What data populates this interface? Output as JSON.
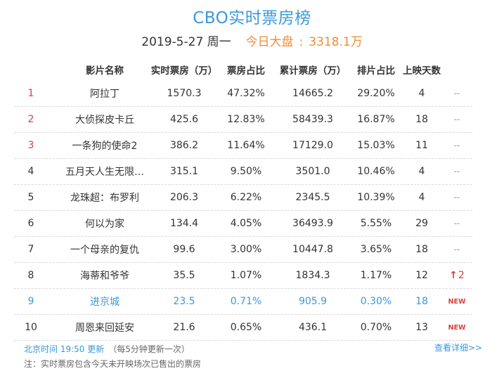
{
  "header": {
    "title": "CBO实时票房榜",
    "date": "2019-5-27",
    "weekday": "周一",
    "total_label": "今日大盘",
    "colon": ":",
    "total_value": "3318.1万"
  },
  "columns": [
    "影片名称",
    "实时票房（万）",
    "票房占比",
    "累计票房（万）",
    "排片占比",
    "上映天数"
  ],
  "rows": [
    {
      "rank": "1",
      "name": "阿拉丁",
      "realtime": "1570.3",
      "share": "47.32%",
      "cumulative": "14665.2",
      "schedule": "29.20%",
      "days": "4",
      "trend": "--"
    },
    {
      "rank": "2",
      "name": "大侦探皮卡丘",
      "realtime": "425.6",
      "share": "12.83%",
      "cumulative": "58439.3",
      "schedule": "16.87%",
      "days": "18",
      "trend": "--"
    },
    {
      "rank": "3",
      "name": "一条狗的使命2",
      "realtime": "386.2",
      "share": "11.64%",
      "cumulative": "17129.0",
      "schedule": "15.03%",
      "days": "11",
      "trend": "--"
    },
    {
      "rank": "4",
      "name": "五月天人生无限…",
      "realtime": "315.1",
      "share": "9.50%",
      "cumulative": "3501.0",
      "schedule": "10.46%",
      "days": "4",
      "trend": "--"
    },
    {
      "rank": "5",
      "name": "龙珠超：布罗利",
      "realtime": "206.3",
      "share": "6.22%",
      "cumulative": "2345.5",
      "schedule": "10.39%",
      "days": "4",
      "trend": "--"
    },
    {
      "rank": "6",
      "name": "何以为家",
      "realtime": "134.4",
      "share": "4.05%",
      "cumulative": "36493.9",
      "schedule": "5.55%",
      "days": "29",
      "trend": "--"
    },
    {
      "rank": "7",
      "name": "一个母亲的复仇",
      "realtime": "99.6",
      "share": "3.00%",
      "cumulative": "10447.8",
      "schedule": "3.65%",
      "days": "18",
      "trend": "--"
    },
    {
      "rank": "8",
      "name": "海蒂和爷爷",
      "realtime": "35.5",
      "share": "1.07%",
      "cumulative": "1834.3",
      "schedule": "1.17%",
      "days": "12",
      "trend_arrow": "↑",
      "trend": "2"
    },
    {
      "rank": "9",
      "name": "进京城",
      "realtime": "23.5",
      "share": "0.71%",
      "cumulative": "905.9",
      "schedule": "0.30%",
      "days": "18",
      "trend": "NEW"
    },
    {
      "rank": "10",
      "name": "周恩来回延安",
      "realtime": "21.6",
      "share": "0.65%",
      "cumulative": "436.1",
      "schedule": "0.70%",
      "days": "13",
      "trend": "NEW"
    }
  ],
  "footer": {
    "update_time": "北京时间 19:50 更新",
    "update_note": "（每5分钟更新一次）",
    "more_link": "查看详细>>",
    "note": "注：实时票房包含今天未开映场次已售出的票房"
  },
  "colors": {
    "accent": "#3b99d9",
    "highlight_orange": "#f08c3a",
    "rank_red": "#d9413a"
  }
}
